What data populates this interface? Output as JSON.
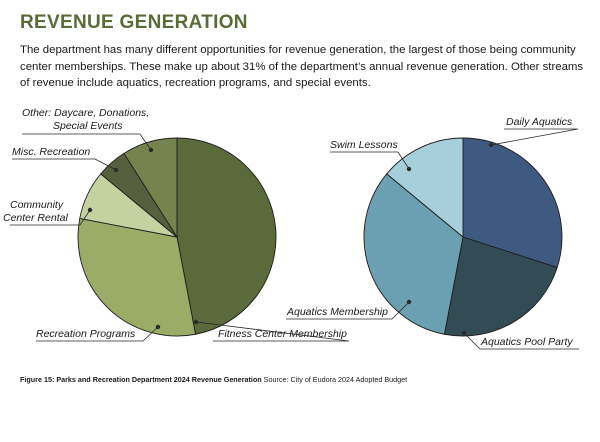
{
  "header": {
    "title": "REVENUE GENERATION",
    "intro": "The department has many different opportunities for revenue generation, the largest of those being community center memberships. These make up about 31% of the department’s annual revenue generation. Other streams of revenue include aquatics, recreation programs, and special events."
  },
  "chart_data": [
    {
      "type": "pie",
      "title": "",
      "slices": [
        {
          "label": "Fitness Center Membership",
          "value": 47,
          "color": "#5a6a3a"
        },
        {
          "label": "Recreation Programs",
          "value": 31,
          "color": "#9aac66"
        },
        {
          "label": "Community Center Rental",
          "value": 8,
          "color": "#c4d1a0"
        },
        {
          "label": "Misc. Recreation",
          "value": 5,
          "color": "#56603f"
        },
        {
          "label": "Other: Daycare, Donations, Special Events",
          "value": 9,
          "color": "#77834e"
        }
      ]
    },
    {
      "type": "pie",
      "title": "",
      "slices": [
        {
          "label": "Daily Aquatics",
          "value": 30,
          "color": "#3f5a80"
        },
        {
          "label": "Aquatics Pool Party",
          "value": 23,
          "color": "#324b55"
        },
        {
          "label": "Aquatics Membership",
          "value": 33,
          "color": "#6aa0b1"
        },
        {
          "label": "Swim Lessons",
          "value": 14,
          "color": "#a7cedb"
        }
      ]
    }
  ],
  "labels": {
    "other_line1": "Other: Daycare, Donations,",
    "other_line2": "Special Events",
    "misc": "Misc. Recreation",
    "community_line1": "Community",
    "community_line2": "Center Rental",
    "recreation": "Recreation Programs",
    "fitness": "Fitness Center Membership",
    "swim": "Swim Lessons",
    "daily": "Daily Aquatics",
    "aq_membership": "Aquatics Membership",
    "pool_party": "Aquatics Pool Party"
  },
  "caption": {
    "bold": "Figure 15: Parks and Recreation Department 2024 Revenue Generation",
    "source": "Source: City of Eudora 2024 Adopted Budget"
  }
}
